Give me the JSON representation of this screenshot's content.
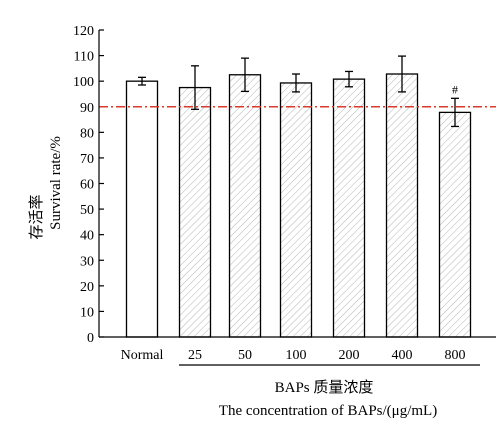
{
  "chart_data": {
    "type": "bar",
    "categories": [
      "Normal",
      "25",
      "50",
      "100",
      "200",
      "400",
      "800"
    ],
    "values": [
      100,
      97.5,
      102.5,
      99.3,
      100.8,
      102.8,
      87.8
    ],
    "errors": [
      1.5,
      8.5,
      6.5,
      3.5,
      3.0,
      7.0,
      5.5
    ],
    "ylim": [
      0,
      120
    ],
    "yticks": [
      0,
      10,
      20,
      30,
      40,
      50,
      60,
      70,
      80,
      90,
      100,
      110,
      120
    ],
    "ylabel_cn": "存活率",
    "ylabel_en": "Survival rate/%",
    "xlabel_cn": "BAPs 质量浓度",
    "xlabel_en": "The concentration of BAPs/(μg/mL)",
    "reference_line": 90,
    "annotations": [
      {
        "category": "800",
        "text": "#"
      }
    ],
    "colors": {
      "reference_line": "#d93a2b",
      "hatch": "#b5b5b5",
      "bar_edge": "#000000"
    }
  }
}
